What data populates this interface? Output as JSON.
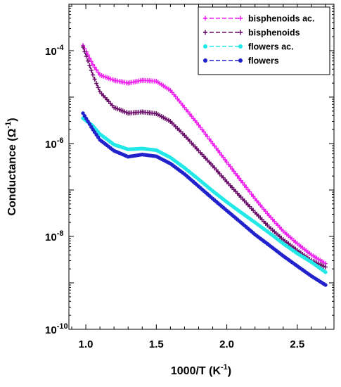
{
  "chart_data": {
    "type": "line",
    "xlabel": "1000/T (K",
    "xlabel_sup": "-1",
    "xlabel_close": ")",
    "ylabel": "Conductance (Ω",
    "ylabel_sup": "-1",
    "ylabel_close": ")",
    "y_scale": "log",
    "xlim": [
      0.88,
      2.76
    ],
    "ylim_exp": [
      -10,
      -3
    ],
    "x_ticks": [
      "1.0",
      "1.5",
      "2.0",
      "2.5"
    ],
    "x_tick_values": [
      1.0,
      1.5,
      2.0,
      2.5
    ],
    "y_tick_exponents": [
      -4,
      -6,
      -8,
      -10
    ],
    "y_tick_base": "10",
    "grid": false,
    "legend_position": "top-right",
    "series": [
      {
        "name": "bisphenoids ac.",
        "color": "#ee22ee",
        "marker": "plus",
        "points": [
          [
            0.98,
            0.00013
          ],
          [
            1.05,
            5e-05
          ],
          [
            1.1,
            3e-05
          ],
          [
            1.2,
            2.3e-05
          ],
          [
            1.3,
            2e-05
          ],
          [
            1.4,
            2.3e-05
          ],
          [
            1.5,
            2.2e-05
          ],
          [
            1.6,
            1.4e-05
          ],
          [
            1.7,
            6e-06
          ],
          [
            1.8,
            2.5e-06
          ],
          [
            1.9,
            1e-06
          ],
          [
            2.0,
            4e-07
          ],
          [
            2.1,
            1.6e-07
          ],
          [
            2.2,
            6.5e-08
          ],
          [
            2.3,
            2.8e-08
          ],
          [
            2.4,
            1.3e-08
          ],
          [
            2.5,
            7e-09
          ],
          [
            2.6,
            4e-09
          ],
          [
            2.7,
            2.6e-09
          ]
        ]
      },
      {
        "name": "bisphenoids",
        "color": "#6a0f6a",
        "marker": "plus",
        "points": [
          [
            0.98,
            0.00012
          ],
          [
            1.05,
            3e-05
          ],
          [
            1.1,
            1.3e-05
          ],
          [
            1.2,
            6e-06
          ],
          [
            1.3,
            4.5e-06
          ],
          [
            1.4,
            4.8e-06
          ],
          [
            1.5,
            4.4e-06
          ],
          [
            1.6,
            3e-06
          ],
          [
            1.7,
            1.5e-06
          ],
          [
            1.8,
            7e-07
          ],
          [
            1.9,
            3.3e-07
          ],
          [
            2.0,
            1.5e-07
          ],
          [
            2.1,
            7e-08
          ],
          [
            2.2,
            3.3e-08
          ],
          [
            2.3,
            1.6e-08
          ],
          [
            2.4,
            8.5e-09
          ],
          [
            2.5,
            5e-09
          ],
          [
            2.6,
            3e-09
          ],
          [
            2.7,
            2.2e-09
          ]
        ]
      },
      {
        "name": "flowers ac.",
        "color": "#22e8e8",
        "marker": "circle",
        "points": [
          [
            0.98,
            3.5e-06
          ],
          [
            1.05,
            2.4e-06
          ],
          [
            1.1,
            1.6e-06
          ],
          [
            1.2,
            9.5e-07
          ],
          [
            1.3,
            7.5e-07
          ],
          [
            1.4,
            7.8e-07
          ],
          [
            1.5,
            7.2e-07
          ],
          [
            1.6,
            5e-07
          ],
          [
            1.7,
            3e-07
          ],
          [
            1.8,
            1.7e-07
          ],
          [
            1.9,
            9.5e-08
          ],
          [
            2.0,
            5.5e-08
          ],
          [
            2.1,
            3.3e-08
          ],
          [
            2.2,
            2e-08
          ],
          [
            2.3,
            1.2e-08
          ],
          [
            2.4,
            7e-09
          ],
          [
            2.5,
            4.3e-09
          ],
          [
            2.6,
            2.8e-09
          ],
          [
            2.7,
            1.7e-09
          ]
        ]
      },
      {
        "name": "flowers",
        "color": "#2222cc",
        "marker": "circle",
        "points": [
          [
            0.98,
            4.5e-06
          ],
          [
            1.05,
            2e-06
          ],
          [
            1.1,
            1.2e-06
          ],
          [
            1.2,
            7e-07
          ],
          [
            1.3,
            5.2e-07
          ],
          [
            1.4,
            5.8e-07
          ],
          [
            1.5,
            5.3e-07
          ],
          [
            1.6,
            3.7e-07
          ],
          [
            1.7,
            2.2e-07
          ],
          [
            1.8,
            1.2e-07
          ],
          [
            1.9,
            6.5e-08
          ],
          [
            2.0,
            3.6e-08
          ],
          [
            2.1,
            2e-08
          ],
          [
            2.2,
            1.1e-08
          ],
          [
            2.3,
            6.5e-09
          ],
          [
            2.4,
            3.8e-09
          ],
          [
            2.5,
            2.3e-09
          ],
          [
            2.6,
            1.4e-09
          ],
          [
            2.7,
            9e-10
          ]
        ]
      }
    ]
  }
}
